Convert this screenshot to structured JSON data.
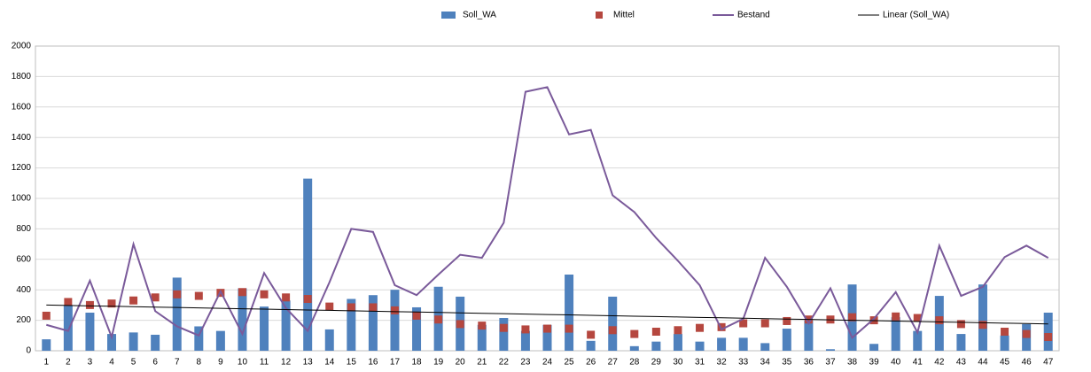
{
  "chart_data": {
    "type": "combo",
    "categories": [
      "1",
      "2",
      "3",
      "4",
      "5",
      "6",
      "7",
      "8",
      "9",
      "10",
      "11",
      "12",
      "13",
      "14",
      "15",
      "16",
      "17",
      "18",
      "19",
      "20",
      "21",
      "22",
      "23",
      "24",
      "25",
      "26",
      "27",
      "28",
      "29",
      "30",
      "31",
      "32",
      "33",
      "34",
      "35",
      "36",
      "37",
      "38",
      "39",
      "40",
      "41",
      "42",
      "43",
      "44",
      "45",
      "46",
      "47"
    ],
    "series": [
      {
        "name": "Soll_WA",
        "kind": "bar",
        "color": "#4f81bd",
        "values": [
          75,
          300,
          250,
          110,
          120,
          105,
          480,
          160,
          130,
          410,
          290,
          330,
          1130,
          140,
          340,
          365,
          400,
          285,
          420,
          355,
          170,
          215,
          130,
          170,
          500,
          65,
          355,
          30,
          60,
          110,
          60,
          85,
          85,
          50,
          145,
          200,
          10,
          435,
          45,
          220,
          130,
          360,
          110,
          435,
          100,
          175,
          250
        ]
      },
      {
        "name": "Mittel",
        "kind": "marker",
        "color": "#b5473f",
        "values": [
          230,
          320,
          300,
          310,
          330,
          350,
          370,
          360,
          380,
          385,
          370,
          350,
          340,
          290,
          285,
          285,
          265,
          230,
          205,
          175,
          165,
          150,
          140,
          145,
          145,
          105,
          135,
          110,
          125,
          135,
          150,
          155,
          180,
          180,
          195,
          205,
          205,
          220,
          200,
          225,
          215,
          200,
          175,
          170,
          125,
          110,
          90
        ]
      },
      {
        "name": "Bestand",
        "kind": "line",
        "color": "#7a5a9a",
        "values": [
          170,
          130,
          460,
          90,
          700,
          260,
          160,
          100,
          390,
          110,
          510,
          280,
          130,
          450,
          800,
          780,
          430,
          365,
          500,
          630,
          610,
          840,
          1700,
          1730,
          1420,
          1450,
          1020,
          910,
          740,
          590,
          430,
          140,
          210,
          610,
          420,
          180,
          410,
          85,
          210,
          385,
          120,
          690,
          360,
          420,
          615,
          690,
          610
        ]
      },
      {
        "name": "Linear (Soll_WA)",
        "kind": "line",
        "color": "#000000",
        "values": [
          300,
          297.3,
          294.6,
          291.9,
          289.2,
          286.5,
          283.8,
          281.1,
          278.4,
          275.7,
          273,
          270.3,
          267.6,
          264.9,
          262.2,
          259.5,
          256.8,
          254.1,
          251.4,
          248.7,
          246,
          243.3,
          240.6,
          237.9,
          235.2,
          232.5,
          229.8,
          227.1,
          224.4,
          221.7,
          219,
          216.3,
          213.6,
          210.9,
          208.2,
          205.5,
          202.8,
          200.1,
          197.4,
          194.7,
          192,
          189.3,
          186.6,
          183.9,
          181.2,
          178.5,
          175.8
        ]
      }
    ],
    "ylim": [
      0,
      2000
    ],
    "yticks": [
      0,
      200,
      400,
      600,
      800,
      1000,
      1200,
      1400,
      1600,
      1800,
      2000
    ],
    "grid": true,
    "legend": "top"
  }
}
